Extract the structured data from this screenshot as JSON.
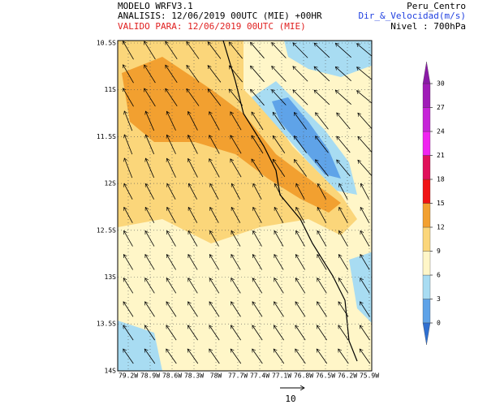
{
  "header": {
    "model": "MODELO WRFV3.1",
    "analysis": "ANALISIS: 12/06/2019 00UTC (MIE) +00HR",
    "valid": "VALIDO PARA: 12/06/2019 00UTC (MIE)",
    "region": "Peru_Centro",
    "variable": "Dir_&_Velocidad(m/s)",
    "level": "Nivel : 700hPa"
  },
  "map": {
    "lat_labels": [
      "10.5S",
      "11S",
      "11.5S",
      "12S",
      "12.5S",
      "13S",
      "13.5S",
      "14S"
    ],
    "lon_labels": [
      "79.2W",
      "78.9W",
      "78.6W",
      "78.3W",
      "78W",
      "77.7W",
      "77.4W",
      "77.1W",
      "76.8W",
      "76.5W",
      "76.2W",
      "75.9W"
    ]
  },
  "colorbar": {
    "ticks": [
      0,
      3,
      6,
      9,
      12,
      15,
      18,
      21,
      24,
      27,
      30
    ],
    "colors": [
      "#2f6fd0",
      "#5fa3e8",
      "#a8dcf2",
      "#fff6c8",
      "#fbd67a",
      "#f2a030",
      "#f01414",
      "#e0105a",
      "#f024f0",
      "#c624d8",
      "#a01cb8",
      "#8a1aa6"
    ]
  },
  "reference_vector": {
    "label": "10"
  }
}
